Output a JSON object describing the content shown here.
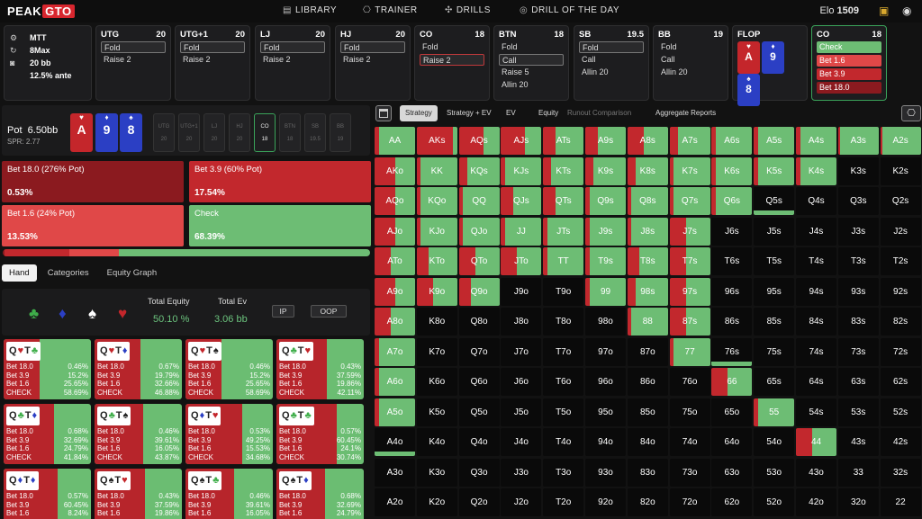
{
  "header": {
    "logo_a": "PEAK",
    "logo_b": "GTO",
    "nav": [
      {
        "icon": "library-icon",
        "label": "LIBRARY"
      },
      {
        "icon": "controller-icon",
        "label": "TRAINER"
      },
      {
        "icon": "drills-icon",
        "label": "DRILLS"
      },
      {
        "icon": "target-icon",
        "label": "DRILL OF THE DAY"
      }
    ],
    "elo_label": "Elo",
    "elo_value": "1509"
  },
  "game": {
    "format": "MTT",
    "table": "8Max",
    "stack": "20 bb",
    "ante": "12.5% ante"
  },
  "seats": [
    {
      "pos": "UTG",
      "stack": "20",
      "actions": [
        "Fold",
        "Raise 2"
      ],
      "selected": 0
    },
    {
      "pos": "UTG+1",
      "stack": "20",
      "actions": [
        "Fold",
        "Raise 2"
      ],
      "selected": 0
    },
    {
      "pos": "LJ",
      "stack": "20",
      "actions": [
        "Fold",
        "Raise 2"
      ],
      "selected": 0
    },
    {
      "pos": "HJ",
      "stack": "20",
      "actions": [
        "Fold",
        "Raise 2"
      ],
      "selected": 0
    },
    {
      "pos": "CO",
      "stack": "18",
      "actions": [
        "Fold",
        "Raise 2"
      ],
      "selected": 1
    },
    {
      "pos": "BTN",
      "stack": "18",
      "actions": [
        "Fold",
        "Call",
        "Raise 5",
        "Allin 20"
      ],
      "selected": 1
    },
    {
      "pos": "SB",
      "stack": "19.5",
      "actions": [
        "Fold",
        "Call",
        "Allin 20"
      ],
      "selected": 0
    },
    {
      "pos": "BB",
      "stack": "19",
      "actions": [
        "Fold",
        "Call",
        "Allin 20"
      ],
      "selected": -1
    }
  ],
  "flop": {
    "label": "FLOP",
    "cards": [
      {
        "rank": "A",
        "suit": "♥",
        "color": "#c4262b"
      },
      {
        "rank": "9",
        "suit": "♦",
        "color": "#2b3fc4"
      },
      {
        "rank": "8",
        "suit": "♠",
        "color": "#2b3fc4"
      }
    ]
  },
  "co_panel": {
    "pos": "CO",
    "stack": "18",
    "actions": [
      {
        "label": "Check",
        "color": "#6dbd74"
      },
      {
        "label": "Bet 1.6",
        "color": "#e04848"
      },
      {
        "label": "Bet 3.9",
        "color": "#c2282d"
      },
      {
        "label": "Bet 18.0",
        "color": "#8b1a1f"
      }
    ]
  },
  "pot": {
    "label": "Pot",
    "value": "6.50bb",
    "spr": "SPR: 2.77"
  },
  "board": [
    {
      "rank": "A",
      "suit": "♥",
      "color": "#c4262b"
    },
    {
      "rank": "9",
      "suit": "♦",
      "color": "#2b3fc4"
    },
    {
      "rank": "8",
      "suit": "♠",
      "color": "#2b3fc4"
    }
  ],
  "positions": [
    {
      "pos": "UTG",
      "stack": "20"
    },
    {
      "pos": "UTG+1",
      "stack": "20"
    },
    {
      "pos": "LJ",
      "stack": "20"
    },
    {
      "pos": "HJ",
      "stack": "20"
    },
    {
      "pos": "CO",
      "stack": "18",
      "active": true
    },
    {
      "pos": "BTN",
      "stack": "18"
    },
    {
      "pos": "SB",
      "stack": "19.5"
    },
    {
      "pos": "BB",
      "stack": "19"
    }
  ],
  "strategy": [
    {
      "label": "Bet 18.0 (276% Pot)",
      "pct": "0.53%",
      "color": "#8b1a1f"
    },
    {
      "label": "Bet 3.9 (60% Pot)",
      "pct": "17.54%",
      "color": "#c2282d"
    },
    {
      "label": "Bet 1.6 (24% Pot)",
      "pct": "13.53%",
      "color": "#e04848"
    },
    {
      "label": "Check",
      "pct": "68.39%",
      "color": "#6dbd74"
    }
  ],
  "freq_fractions": [
    0.0053,
    0.1754,
    0.1353,
    0.6839
  ],
  "left_tabs": [
    {
      "label": "Hand",
      "on": true
    },
    {
      "label": "Categories",
      "on": false
    },
    {
      "label": "Equity Graph",
      "on": false
    }
  ],
  "equity": {
    "suits": [
      {
        "glyph": "♣",
        "color": "#3fae4a"
      },
      {
        "glyph": "♦",
        "color": "#2b3fc4"
      },
      {
        "glyph": "♠",
        "color": "#ffffff"
      },
      {
        "glyph": "♥",
        "color": "#c4262b"
      }
    ],
    "total_equity_label": "Total Equity",
    "total_equity": "50.10 %",
    "total_ev_label": "Total Ev",
    "total_ev": "3.06 bb",
    "ip_label": "IP",
    "oop_label": "OOP"
  },
  "combos": [
    {
      "c1": "Q",
      "s1": "♥",
      "sc1": "#c4262b",
      "c2": "T",
      "s2": "♣",
      "sc2": "#3fae4a",
      "red": 0.41,
      "vals": [
        "0.46%",
        "15.2%",
        "25.65%",
        "58.69%"
      ]
    },
    {
      "c1": "Q",
      "s1": "♥",
      "sc1": "#c4262b",
      "c2": "T",
      "s2": "♦",
      "sc2": "#2b3fc4",
      "red": 0.53,
      "vals": [
        "0.67%",
        "19.79%",
        "32.66%",
        "46.88%"
      ]
    },
    {
      "c1": "Q",
      "s1": "♥",
      "sc1": "#c4262b",
      "c2": "T",
      "s2": "♠",
      "sc2": "#222222",
      "red": 0.41,
      "vals": [
        "0.46%",
        "15.2%",
        "25.65%",
        "58.69%"
      ]
    },
    {
      "c1": "Q",
      "s1": "♣",
      "sc1": "#3fae4a",
      "c2": "T",
      "s2": "♥",
      "sc2": "#c4262b",
      "red": 0.58,
      "vals": [
        "0.43%",
        "37.59%",
        "19.86%",
        "42.11%"
      ]
    },
    {
      "c1": "Q",
      "s1": "♣",
      "sc1": "#3fae4a",
      "c2": "T",
      "s2": "♦",
      "sc2": "#2b3fc4",
      "red": 0.58,
      "vals": [
        "0.68%",
        "32.69%",
        "24.79%",
        "41.84%"
      ]
    },
    {
      "c1": "Q",
      "s1": "♣",
      "sc1": "#3fae4a",
      "c2": "T",
      "s2": "♠",
      "sc2": "#222222",
      "red": 0.56,
      "vals": [
        "0.46%",
        "39.61%",
        "16.05%",
        "43.87%"
      ]
    },
    {
      "c1": "Q",
      "s1": "♦",
      "sc1": "#2b3fc4",
      "c2": "T",
      "s2": "♥",
      "sc2": "#c4262b",
      "red": 0.65,
      "vals": [
        "0.53%",
        "49.25%",
        "15.53%",
        "34.68%"
      ]
    },
    {
      "c1": "Q",
      "s1": "♣",
      "sc1": "#3fae4a",
      "c2": "T",
      "s2": "♣",
      "sc2": "#3fae4a",
      "red": 0.69,
      "vals": [
        "0.57%",
        "60.45%",
        "24.1%",
        "30.74%"
      ]
    },
    {
      "c1": "Q",
      "s1": "♦",
      "sc1": "#2b3fc4",
      "c2": "T",
      "s2": "♦",
      "sc2": "#2b3fc4",
      "red": 0.62,
      "vals": [
        "0.57%",
        "60.45%",
        "8.24%",
        ""
      ]
    },
    {
      "c1": "Q",
      "s1": "♠",
      "sc1": "#222222",
      "c2": "T",
      "s2": "♥",
      "sc2": "#c4262b",
      "red": 0.58,
      "vals": [
        "0.43%",
        "37.59%",
        "19.86%",
        ""
      ]
    },
    {
      "c1": "Q",
      "s1": "♠",
      "sc1": "#222222",
      "c2": "T",
      "s2": "♣",
      "sc2": "#3fae4a",
      "red": 0.56,
      "vals": [
        "0.46%",
        "39.61%",
        "16.05%",
        ""
      ]
    },
    {
      "c1": "Q",
      "s1": "♠",
      "sc1": "#222222",
      "c2": "T",
      "s2": "♦",
      "sc2": "#2b3fc4",
      "red": 0.56,
      "vals": [
        "0.68%",
        "32.69%",
        "24.79%",
        ""
      ]
    }
  ],
  "combo_row_labels": [
    "Bet 18.0",
    "Bet 3.9",
    "Bet 1.6",
    "CHECK"
  ],
  "right_tabs": [
    {
      "label": "Strategy",
      "on": true
    },
    {
      "label": "Strategy + EV"
    },
    {
      "label": "EV"
    },
    {
      "label": "Equity"
    },
    {
      "label": "Runout Comparison",
      "dim": true
    },
    {
      "label": "Aggregate Reports"
    }
  ],
  "ranks": [
    "A",
    "K",
    "Q",
    "J",
    "T",
    "9",
    "8",
    "7",
    "6",
    "5",
    "4",
    "3",
    "2"
  ],
  "matrix_red": [
    [
      0.1,
      0.9,
      0.6,
      0.6,
      0.3,
      0.3,
      0.4,
      0.2,
      0.1,
      0.1,
      0.1,
      0.05,
      0.05
    ],
    [
      0.5,
      0.1,
      0.2,
      0.1,
      0.2,
      0.2,
      0.2,
      0.1,
      0.1,
      0.1,
      0.1,
      0,
      0
    ],
    [
      0.5,
      0.1,
      0.1,
      0.3,
      0.3,
      0.1,
      0.1,
      0.1,
      0.1,
      0,
      0,
      0,
      0
    ],
    [
      0.5,
      0.1,
      0.1,
      0.1,
      0.1,
      0.1,
      0.1,
      0.4,
      0,
      0,
      0,
      0,
      0
    ],
    [
      0.4,
      0.3,
      0.4,
      0.4,
      0.1,
      0.1,
      0.3,
      0.4,
      0,
      0,
      0,
      0,
      0
    ],
    [
      0.5,
      0.4,
      0.3,
      0,
      0,
      0.1,
      0.2,
      0.4,
      0,
      0,
      0,
      0,
      0
    ],
    [
      0.4,
      0,
      0,
      0,
      0,
      0,
      0.1,
      0.4,
      0,
      0,
      0,
      0,
      0
    ],
    [
      0.1,
      0,
      0,
      0,
      0,
      0,
      0,
      0.1,
      0,
      0,
      0,
      0,
      0
    ],
    [
      0.1,
      0,
      0,
      0,
      0,
      0,
      0,
      0,
      0.4,
      0,
      0,
      0,
      0
    ],
    [
      0.1,
      0,
      0,
      0,
      0,
      0,
      0,
      0,
      0,
      0.1,
      0,
      0,
      0
    ],
    [
      0,
      0,
      0,
      0,
      0,
      0,
      0,
      0,
      0,
      0,
      0.4,
      0,
      0
    ],
    [
      0,
      0,
      0,
      0,
      0,
      0,
      0,
      0,
      0,
      0,
      0,
      0,
      0
    ],
    [
      0,
      0,
      0,
      0,
      0,
      0,
      0,
      0,
      0,
      0,
      0,
      0,
      0
    ]
  ],
  "matrix_freq": [
    [
      1,
      1,
      1,
      1,
      1,
      1,
      1,
      1,
      1,
      1,
      1,
      1,
      1
    ],
    [
      1,
      1,
      1,
      1,
      1,
      1,
      1,
      1,
      1,
      1,
      1,
      0,
      0
    ],
    [
      1,
      1,
      1,
      1,
      1,
      1,
      1,
      1,
      1,
      0.1,
      0,
      0,
      0
    ],
    [
      1,
      1,
      1,
      1,
      1,
      1,
      1,
      1,
      0,
      0,
      0,
      0,
      0
    ],
    [
      1,
      1,
      1,
      1,
      1,
      1,
      1,
      1,
      0,
      0,
      0,
      0,
      0
    ],
    [
      1,
      1,
      1,
      0,
      0,
      1,
      1,
      1,
      0,
      0,
      0,
      0,
      0
    ],
    [
      1,
      0,
      0,
      0,
      0,
      0,
      1,
      1,
      0,
      0,
      0,
      0,
      0
    ],
    [
      1,
      0,
      0,
      0,
      0,
      0,
      0,
      1,
      0.1,
      0,
      0,
      0,
      0
    ],
    [
      1,
      0,
      0,
      0,
      0,
      0,
      0,
      0,
      1,
      0,
      0,
      0,
      0
    ],
    [
      1,
      0,
      0,
      0,
      0,
      0,
      0,
      0,
      0,
      1,
      0,
      0,
      0
    ],
    [
      0.1,
      0,
      0,
      0,
      0,
      0,
      0,
      0,
      0,
      0,
      1,
      0,
      0
    ],
    [
      0,
      0,
      0,
      0,
      0,
      0,
      0,
      0,
      0,
      0,
      0,
      0,
      0
    ],
    [
      0,
      0,
      0,
      0,
      0,
      0,
      0,
      0,
      0,
      0,
      0,
      0,
      0
    ]
  ],
  "colors": {
    "check": "#6dbd74",
    "bet": "#c2282d",
    "bg": "#121212",
    "panel": "#1d1d1f"
  }
}
